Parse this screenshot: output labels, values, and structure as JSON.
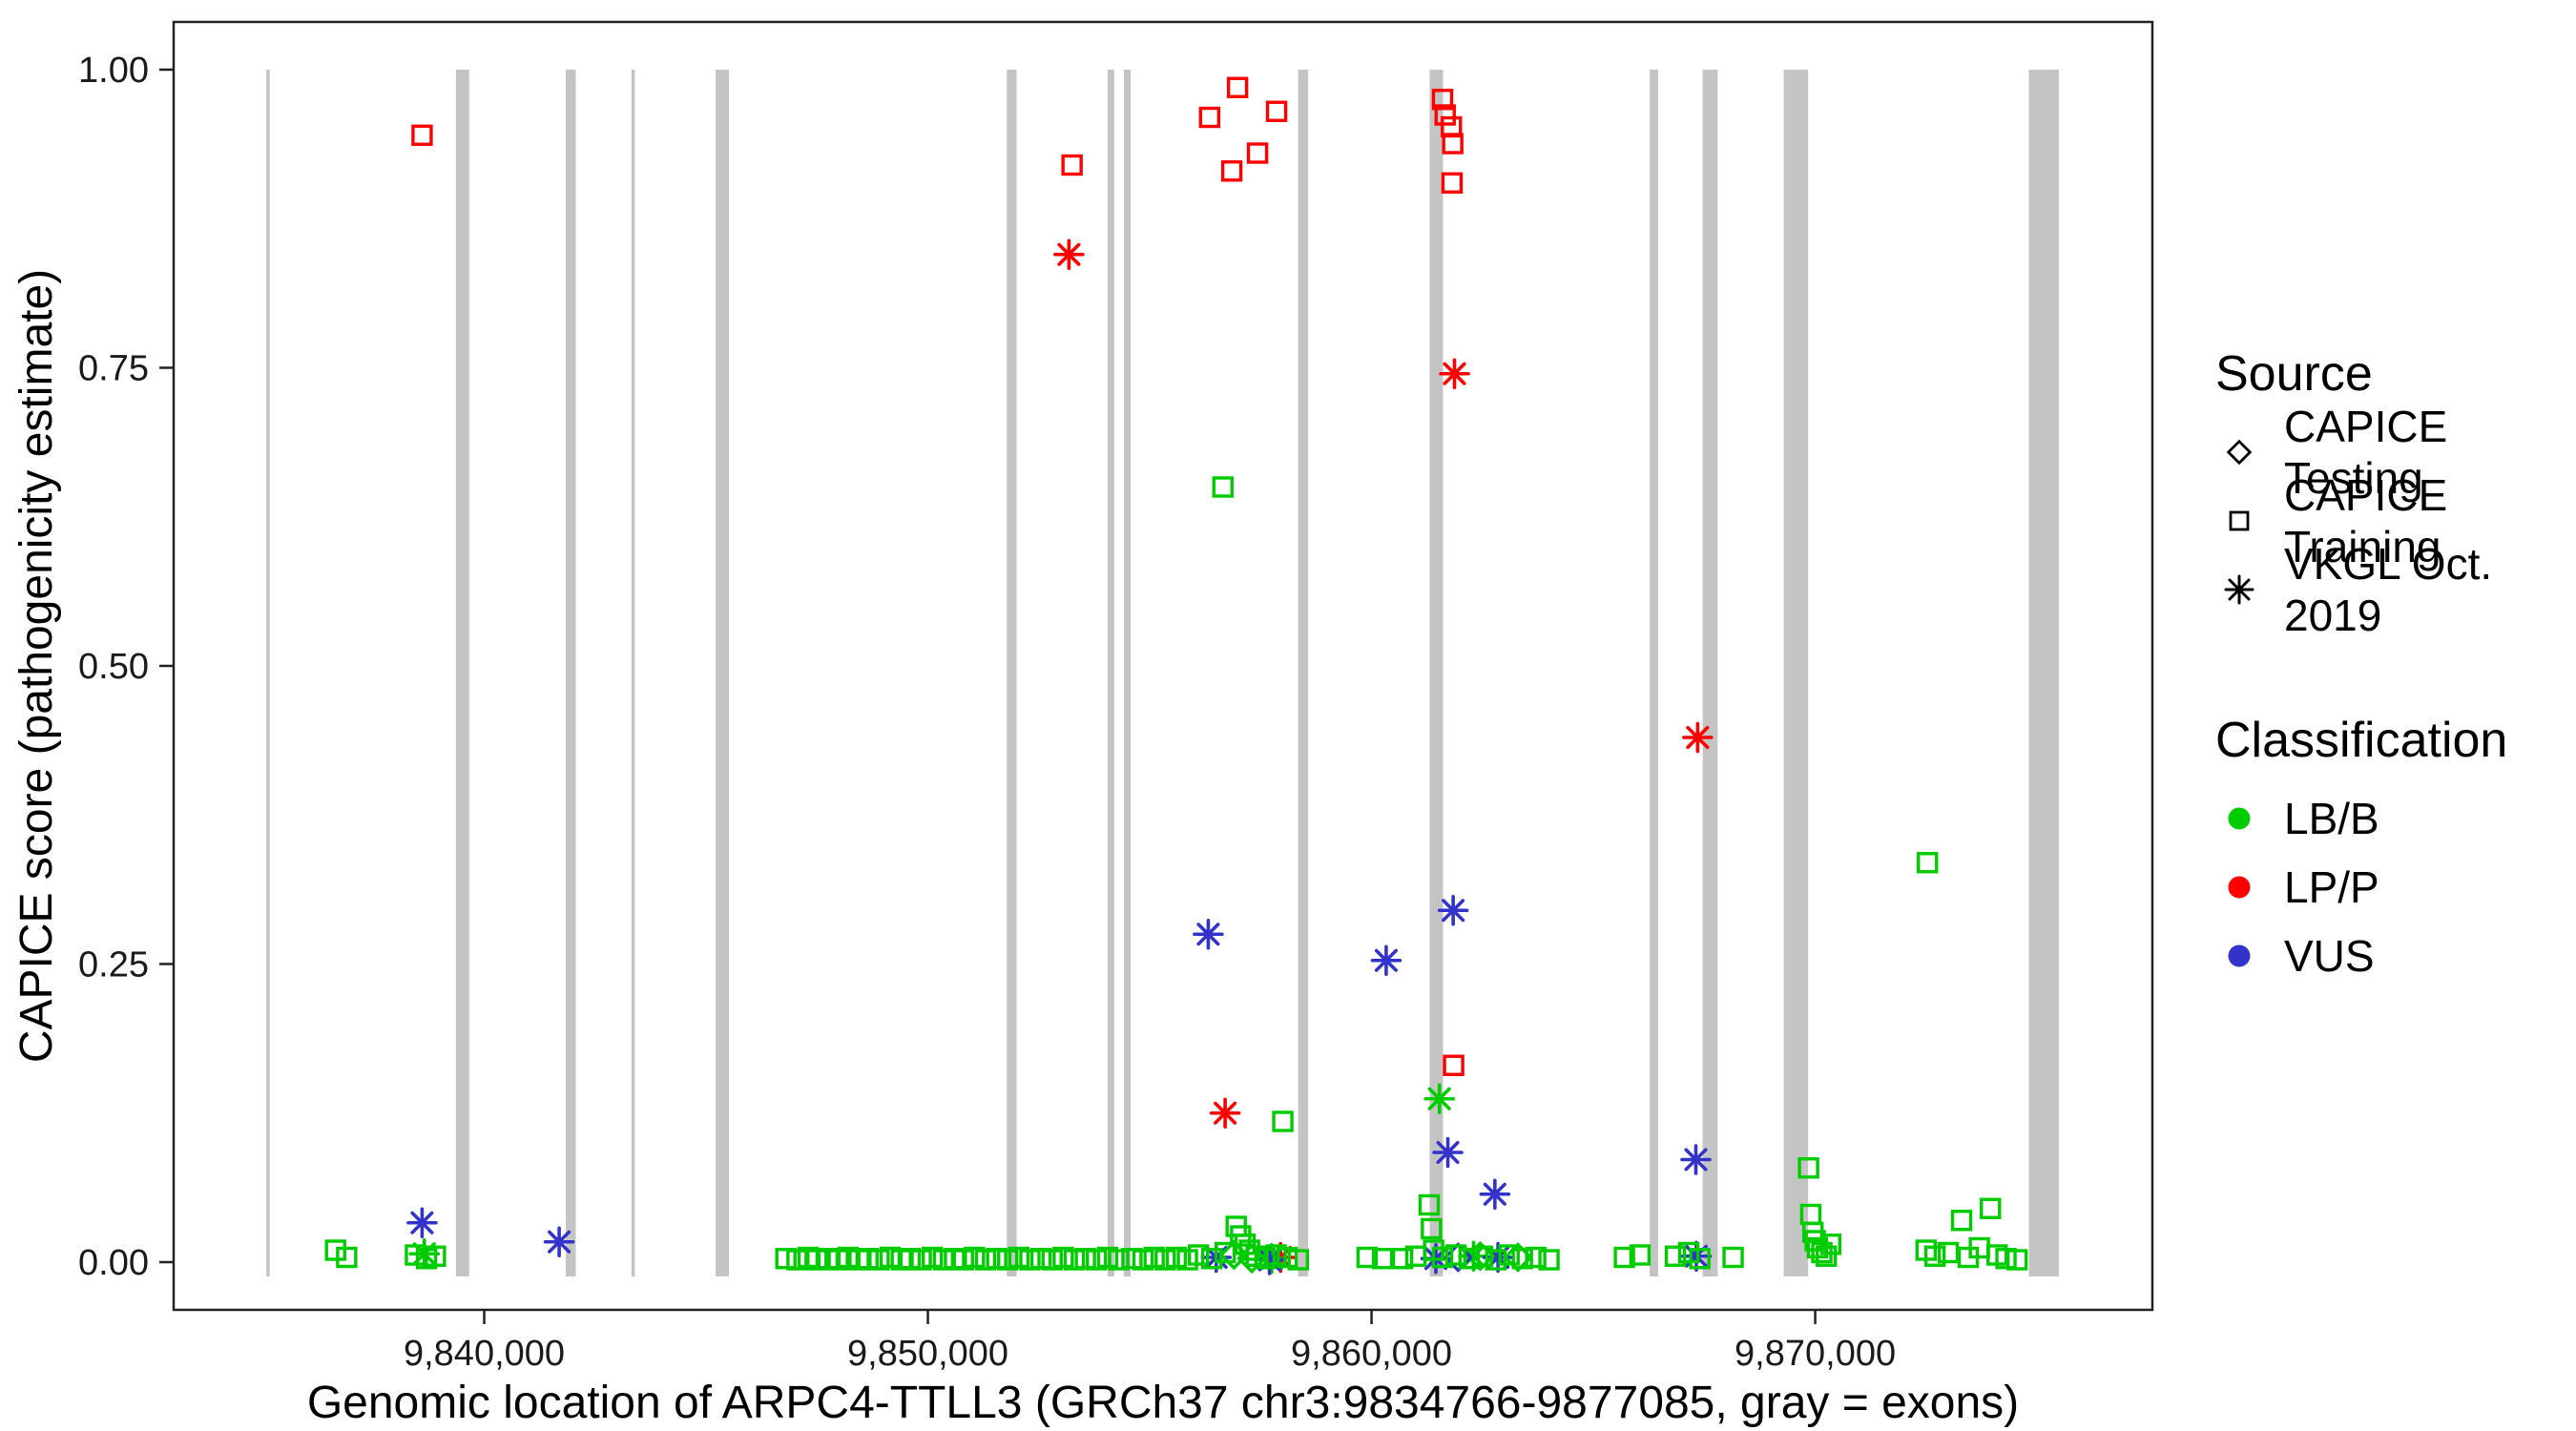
{
  "legend": {
    "source": {
      "title": "Source",
      "items": [
        {
          "label": "CAPICE Testing",
          "icon": "diamond-icon"
        },
        {
          "label": "CAPICE Training",
          "icon": "square-icon"
        },
        {
          "label": "VKGL Oct. 2019",
          "icon": "asterisk-icon"
        }
      ]
    },
    "classification": {
      "title": "Classification",
      "items": [
        {
          "label": "LB/B",
          "color": "#00CC00"
        },
        {
          "label": "LP/P",
          "color": "#FF0000"
        },
        {
          "label": "VUS",
          "color": "#3333CC"
        }
      ]
    }
  },
  "chart_data": {
    "type": "scatter",
    "title": "",
    "xlabel": "Genomic location of ARPC4-TTLL3 (GRCh37 chr3:9834766-9877085, gray = exons)",
    "ylabel": "CAPICE score (pathogenicity estimate)",
    "xlim": [
      9833000,
      9877600
    ],
    "ylim": [
      -0.04,
      1.04
    ],
    "xticks": [
      9840000,
      9850000,
      9860000,
      9870000
    ],
    "xtick_labels": [
      "9,840,000",
      "9,850,000",
      "9,860,000",
      "9,870,000"
    ],
    "yticks": [
      0,
      0.25,
      0.5,
      0.75,
      1
    ],
    "ytick_labels": [
      "0.00",
      "0.25",
      "0.50",
      "0.75",
      "1.00"
    ],
    "grid": false,
    "legend_position": "right",
    "exon_color": "#C4C4C4",
    "exon_y_range": [
      -0.012,
      1.0
    ],
    "exons": [
      [
        9835090,
        9835165
      ],
      [
        9839362,
        9839662
      ],
      [
        9841838,
        9842063
      ],
      [
        9843320,
        9843395
      ],
      [
        9845215,
        9845515
      ],
      [
        9851780,
        9852000
      ],
      [
        9854050,
        9854200
      ],
      [
        9854420,
        9854570
      ],
      [
        9858346,
        9858571
      ],
      [
        9861311,
        9861611
      ],
      [
        9866270,
        9866460
      ],
      [
        9867464,
        9867802
      ],
      [
        9869290,
        9869840
      ],
      [
        9874816,
        9875491
      ]
    ],
    "classification_colors": {
      "LB/B": "#00CC00",
      "LP/P": "#FF0000",
      "VUS": "#3333CC"
    },
    "source_shapes": {
      "CAPICE Testing": "diamond",
      "CAPICE Training": "square",
      "VKGL Oct. 2019": "asterisk"
    },
    "points": [
      {
        "x": 9838600,
        "y": 0.945,
        "source": "CAPICE Training",
        "class": "LP/P"
      },
      {
        "x": 9853250,
        "y": 0.92,
        "source": "CAPICE Training",
        "class": "LP/P"
      },
      {
        "x": 9856350,
        "y": 0.96,
        "source": "CAPICE Training",
        "class": "LP/P"
      },
      {
        "x": 9856850,
        "y": 0.915,
        "source": "CAPICE Training",
        "class": "LP/P"
      },
      {
        "x": 9856980,
        "y": 0.985,
        "source": "CAPICE Training",
        "class": "LP/P"
      },
      {
        "x": 9857430,
        "y": 0.93,
        "source": "CAPICE Training",
        "class": "LP/P"
      },
      {
        "x": 9857860,
        "y": 0.965,
        "source": "CAPICE Training",
        "class": "LP/P"
      },
      {
        "x": 9861600,
        "y": 0.975,
        "source": "CAPICE Training",
        "class": "LP/P"
      },
      {
        "x": 9861660,
        "y": 0.962,
        "source": "CAPICE Training",
        "class": "LP/P"
      },
      {
        "x": 9861800,
        "y": 0.952,
        "source": "CAPICE Training",
        "class": "LP/P"
      },
      {
        "x": 9861830,
        "y": 0.938,
        "source": "CAPICE Training",
        "class": "LP/P"
      },
      {
        "x": 9861815,
        "y": 0.905,
        "source": "CAPICE Training",
        "class": "LP/P"
      },
      {
        "x": 9861850,
        "y": 0.165,
        "source": "CAPICE Training",
        "class": "LP/P"
      },
      {
        "x": 9853180,
        "y": 0.845,
        "source": "VKGL Oct. 2019",
        "class": "LP/P"
      },
      {
        "x": 9861870,
        "y": 0.745,
        "source": "VKGL Oct. 2019",
        "class": "LP/P"
      },
      {
        "x": 9867350,
        "y": 0.44,
        "source": "VKGL Oct. 2019",
        "class": "LP/P"
      },
      {
        "x": 9856700,
        "y": 0.125,
        "source": "VKGL Oct. 2019",
        "class": "LP/P"
      },
      {
        "x": 9857950,
        "y": 0.004,
        "source": "VKGL Oct. 2019",
        "class": "LP/P"
      },
      {
        "x": 9856650,
        "y": 0.65,
        "source": "CAPICE Training",
        "class": "LB/B"
      },
      {
        "x": 9858000,
        "y": 0.118,
        "source": "CAPICE Training",
        "class": "LB/B"
      },
      {
        "x": 9872530,
        "y": 0.335,
        "source": "CAPICE Training",
        "class": "LB/B"
      },
      {
        "x": 9838650,
        "y": 0.007,
        "source": "VKGL Oct. 2019",
        "class": "LB/B"
      },
      {
        "x": 9861530,
        "y": 0.137,
        "source": "VKGL Oct. 2019",
        "class": "LB/B"
      },
      {
        "x": 9857750,
        "y": 0.003,
        "source": "VKGL Oct. 2019",
        "class": "LB/B"
      },
      {
        "x": 9862300,
        "y": 0.005,
        "source": "VKGL Oct. 2019",
        "class": "LB/B"
      },
      {
        "x": 9838600,
        "y": 0.033,
        "source": "VKGL Oct. 2019",
        "class": "VUS"
      },
      {
        "x": 9841690,
        "y": 0.017,
        "source": "VKGL Oct. 2019",
        "class": "VUS"
      },
      {
        "x": 9856320,
        "y": 0.275,
        "source": "VKGL Oct. 2019",
        "class": "VUS"
      },
      {
        "x": 9860330,
        "y": 0.253,
        "source": "VKGL Oct. 2019",
        "class": "VUS"
      },
      {
        "x": 9861840,
        "y": 0.295,
        "source": "VKGL Oct. 2019",
        "class": "VUS"
      },
      {
        "x": 9861720,
        "y": 0.092,
        "source": "VKGL Oct. 2019",
        "class": "VUS"
      },
      {
        "x": 9862780,
        "y": 0.057,
        "source": "VKGL Oct. 2019",
        "class": "VUS"
      },
      {
        "x": 9867310,
        "y": 0.086,
        "source": "VKGL Oct. 2019",
        "class": "VUS"
      },
      {
        "x": 9856500,
        "y": 0.004,
        "source": "VKGL Oct. 2019",
        "class": "VUS"
      },
      {
        "x": 9857700,
        "y": 0.002,
        "source": "VKGL Oct. 2019",
        "class": "VUS"
      },
      {
        "x": 9861450,
        "y": 0.003,
        "source": "VKGL Oct. 2019",
        "class": "VUS"
      },
      {
        "x": 9862850,
        "y": 0.004,
        "source": "VKGL Oct. 2019",
        "class": "VUS"
      },
      {
        "x": 9867320,
        "y": 0.005,
        "source": "VKGL Oct. 2019",
        "class": "VUS"
      },
      {
        "x": 9856900,
        "y": 0.006,
        "source": "CAPICE Testing",
        "class": "LB/B"
      },
      {
        "x": 9857300,
        "y": 0.003,
        "source": "CAPICE Testing",
        "class": "LB/B"
      },
      {
        "x": 9862450,
        "y": 0.005,
        "source": "CAPICE Testing",
        "class": "LB/B"
      },
      {
        "x": 9863300,
        "y": 0.004,
        "source": "CAPICE Testing",
        "class": "LB/B"
      },
      {
        "x": 9861950,
        "y": 0.004,
        "source": "CAPICE Testing",
        "class": "VUS"
      },
      {
        "x": 9836650,
        "y": 0.01,
        "source": "CAPICE Training",
        "class": "LB/B"
      },
      {
        "x": 9836900,
        "y": 0.004,
        "source": "CAPICE Training",
        "class": "LB/B"
      },
      {
        "x": 9838450,
        "y": 0.006,
        "source": "CAPICE Training",
        "class": "LB/B"
      },
      {
        "x": 9838700,
        "y": 0.003,
        "source": "CAPICE Training",
        "class": "LB/B"
      },
      {
        "x": 9838900,
        "y": 0.005,
        "source": "CAPICE Training",
        "class": "LB/B"
      },
      {
        "x": 9846800,
        "y": 0.003,
        "source": "CAPICE Training",
        "class": "LB/B"
      },
      {
        "x": 9847050,
        "y": 0.002,
        "source": "CAPICE Training",
        "class": "LB/B"
      },
      {
        "x": 9847300,
        "y": 0.004,
        "source": "CAPICE Training",
        "class": "LB/B"
      },
      {
        "x": 9847500,
        "y": 0.002,
        "source": "CAPICE Training",
        "class": "LB/B"
      },
      {
        "x": 9847750,
        "y": 0.003,
        "source": "CAPICE Training",
        "class": "LB/B"
      },
      {
        "x": 9847980,
        "y": 0.002,
        "source": "CAPICE Training",
        "class": "LB/B"
      },
      {
        "x": 9848200,
        "y": 0.004,
        "source": "CAPICE Training",
        "class": "LB/B"
      },
      {
        "x": 9848450,
        "y": 0.002,
        "source": "CAPICE Training",
        "class": "LB/B"
      },
      {
        "x": 9848650,
        "y": 0.003,
        "source": "CAPICE Training",
        "class": "LB/B"
      },
      {
        "x": 9848900,
        "y": 0.002,
        "source": "CAPICE Training",
        "class": "LB/B"
      },
      {
        "x": 9849150,
        "y": 0.004,
        "source": "CAPICE Training",
        "class": "LB/B"
      },
      {
        "x": 9849400,
        "y": 0.002,
        "source": "CAPICE Training",
        "class": "LB/B"
      },
      {
        "x": 9849600,
        "y": 0.003,
        "source": "CAPICE Training",
        "class": "LB/B"
      },
      {
        "x": 9849850,
        "y": 0.002,
        "source": "CAPICE Training",
        "class": "LB/B"
      },
      {
        "x": 9850100,
        "y": 0.004,
        "source": "CAPICE Training",
        "class": "LB/B"
      },
      {
        "x": 9850350,
        "y": 0.002,
        "source": "CAPICE Training",
        "class": "LB/B"
      },
      {
        "x": 9850600,
        "y": 0.003,
        "source": "CAPICE Training",
        "class": "LB/B"
      },
      {
        "x": 9850800,
        "y": 0.002,
        "source": "CAPICE Training",
        "class": "LB/B"
      },
      {
        "x": 9851050,
        "y": 0.004,
        "source": "CAPICE Training",
        "class": "LB/B"
      },
      {
        "x": 9851300,
        "y": 0.002,
        "source": "CAPICE Training",
        "class": "LB/B"
      },
      {
        "x": 9851550,
        "y": 0.003,
        "source": "CAPICE Training",
        "class": "LB/B"
      },
      {
        "x": 9851800,
        "y": 0.002,
        "source": "CAPICE Training",
        "class": "LB/B"
      },
      {
        "x": 9852050,
        "y": 0.004,
        "source": "CAPICE Training",
        "class": "LB/B"
      },
      {
        "x": 9852300,
        "y": 0.002,
        "source": "CAPICE Training",
        "class": "LB/B"
      },
      {
        "x": 9852550,
        "y": 0.003,
        "source": "CAPICE Training",
        "class": "LB/B"
      },
      {
        "x": 9852800,
        "y": 0.002,
        "source": "CAPICE Training",
        "class": "LB/B"
      },
      {
        "x": 9853050,
        "y": 0.004,
        "source": "CAPICE Training",
        "class": "LB/B"
      },
      {
        "x": 9853300,
        "y": 0.002,
        "source": "CAPICE Training",
        "class": "LB/B"
      },
      {
        "x": 9853550,
        "y": 0.003,
        "source": "CAPICE Training",
        "class": "LB/B"
      },
      {
        "x": 9853800,
        "y": 0.002,
        "source": "CAPICE Training",
        "class": "LB/B"
      },
      {
        "x": 9854050,
        "y": 0.004,
        "source": "CAPICE Training",
        "class": "LB/B"
      },
      {
        "x": 9854300,
        "y": 0.002,
        "source": "CAPICE Training",
        "class": "LB/B"
      },
      {
        "x": 9854600,
        "y": 0.003,
        "source": "CAPICE Training",
        "class": "LB/B"
      },
      {
        "x": 9854850,
        "y": 0.002,
        "source": "CAPICE Training",
        "class": "LB/B"
      },
      {
        "x": 9855100,
        "y": 0.004,
        "source": "CAPICE Training",
        "class": "LB/B"
      },
      {
        "x": 9855350,
        "y": 0.002,
        "source": "CAPICE Training",
        "class": "LB/B"
      },
      {
        "x": 9855600,
        "y": 0.004,
        "source": "CAPICE Training",
        "class": "LB/B"
      },
      {
        "x": 9855850,
        "y": 0.002,
        "source": "CAPICE Training",
        "class": "LB/B"
      },
      {
        "x": 9856100,
        "y": 0.006,
        "source": "CAPICE Training",
        "class": "LB/B"
      },
      {
        "x": 9856400,
        "y": 0.003,
        "source": "CAPICE Training",
        "class": "LB/B"
      },
      {
        "x": 9856700,
        "y": 0.008,
        "source": "CAPICE Training",
        "class": "LB/B"
      },
      {
        "x": 9856950,
        "y": 0.03,
        "source": "CAPICE Training",
        "class": "LB/B"
      },
      {
        "x": 9857050,
        "y": 0.022,
        "source": "CAPICE Training",
        "class": "LB/B"
      },
      {
        "x": 9857150,
        "y": 0.015,
        "source": "CAPICE Training",
        "class": "LB/B"
      },
      {
        "x": 9857250,
        "y": 0.01,
        "source": "CAPICE Training",
        "class": "LB/B"
      },
      {
        "x": 9857400,
        "y": 0.005,
        "source": "CAPICE Training",
        "class": "LB/B"
      },
      {
        "x": 9857600,
        "y": 0.003,
        "source": "CAPICE Training",
        "class": "LB/B"
      },
      {
        "x": 9857850,
        "y": 0.006,
        "source": "CAPICE Training",
        "class": "LB/B"
      },
      {
        "x": 9858100,
        "y": 0.004,
        "source": "CAPICE Training",
        "class": "LB/B"
      },
      {
        "x": 9858350,
        "y": 0.002,
        "source": "CAPICE Training",
        "class": "LB/B"
      },
      {
        "x": 9859900,
        "y": 0.004,
        "source": "CAPICE Training",
        "class": "LB/B"
      },
      {
        "x": 9860250,
        "y": 0.003,
        "source": "CAPICE Training",
        "class": "LB/B"
      },
      {
        "x": 9860700,
        "y": 0.003,
        "source": "CAPICE Training",
        "class": "LB/B"
      },
      {
        "x": 9861000,
        "y": 0.005,
        "source": "CAPICE Training",
        "class": "LB/B"
      },
      {
        "x": 9861300,
        "y": 0.048,
        "source": "CAPICE Training",
        "class": "LB/B"
      },
      {
        "x": 9861350,
        "y": 0.028,
        "source": "CAPICE Training",
        "class": "LB/B"
      },
      {
        "x": 9861400,
        "y": 0.01,
        "source": "CAPICE Training",
        "class": "LB/B"
      },
      {
        "x": 9861600,
        "y": 0.004,
        "source": "CAPICE Training",
        "class": "LB/B"
      },
      {
        "x": 9861900,
        "y": 0.006,
        "source": "CAPICE Training",
        "class": "LB/B"
      },
      {
        "x": 9862200,
        "y": 0.003,
        "source": "CAPICE Training",
        "class": "LB/B"
      },
      {
        "x": 9862500,
        "y": 0.005,
        "source": "CAPICE Training",
        "class": "LB/B"
      },
      {
        "x": 9862800,
        "y": 0.002,
        "source": "CAPICE Training",
        "class": "LB/B"
      },
      {
        "x": 9863100,
        "y": 0.006,
        "source": "CAPICE Training",
        "class": "LB/B"
      },
      {
        "x": 9863400,
        "y": 0.003,
        "source": "CAPICE Training",
        "class": "LB/B"
      },
      {
        "x": 9863700,
        "y": 0.004,
        "source": "CAPICE Training",
        "class": "LB/B"
      },
      {
        "x": 9864000,
        "y": 0.002,
        "source": "CAPICE Training",
        "class": "LB/B"
      },
      {
        "x": 9865700,
        "y": 0.004,
        "source": "CAPICE Training",
        "class": "LB/B"
      },
      {
        "x": 9866050,
        "y": 0.006,
        "source": "CAPICE Training",
        "class": "LB/B"
      },
      {
        "x": 9866850,
        "y": 0.005,
        "source": "CAPICE Training",
        "class": "LB/B"
      },
      {
        "x": 9867150,
        "y": 0.008,
        "source": "CAPICE Training",
        "class": "LB/B"
      },
      {
        "x": 9867400,
        "y": 0.003,
        "source": "CAPICE Training",
        "class": "LB/B"
      },
      {
        "x": 9868150,
        "y": 0.004,
        "source": "CAPICE Training",
        "class": "LB/B"
      },
      {
        "x": 9869850,
        "y": 0.079,
        "source": "CAPICE Training",
        "class": "LB/B"
      },
      {
        "x": 9869900,
        "y": 0.04,
        "source": "CAPICE Training",
        "class": "LB/B"
      },
      {
        "x": 9869950,
        "y": 0.025,
        "source": "CAPICE Training",
        "class": "LB/B"
      },
      {
        "x": 9870000,
        "y": 0.018,
        "source": "CAPICE Training",
        "class": "LB/B"
      },
      {
        "x": 9870050,
        "y": 0.012,
        "source": "CAPICE Training",
        "class": "LB/B"
      },
      {
        "x": 9870150,
        "y": 0.008,
        "source": "CAPICE Training",
        "class": "LB/B"
      },
      {
        "x": 9870250,
        "y": 0.005,
        "source": "CAPICE Training",
        "class": "LB/B"
      },
      {
        "x": 9870350,
        "y": 0.015,
        "source": "CAPICE Training",
        "class": "LB/B"
      },
      {
        "x": 9872500,
        "y": 0.01,
        "source": "CAPICE Training",
        "class": "LB/B"
      },
      {
        "x": 9872700,
        "y": 0.005,
        "source": "CAPICE Training",
        "class": "LB/B"
      },
      {
        "x": 9873000,
        "y": 0.008,
        "source": "CAPICE Training",
        "class": "LB/B"
      },
      {
        "x": 9873300,
        "y": 0.035,
        "source": "CAPICE Training",
        "class": "LB/B"
      },
      {
        "x": 9873450,
        "y": 0.004,
        "source": "CAPICE Training",
        "class": "LB/B"
      },
      {
        "x": 9873700,
        "y": 0.012,
        "source": "CAPICE Training",
        "class": "LB/B"
      },
      {
        "x": 9873950,
        "y": 0.045,
        "source": "CAPICE Training",
        "class": "LB/B"
      },
      {
        "x": 9874100,
        "y": 0.006,
        "source": "CAPICE Training",
        "class": "LB/B"
      },
      {
        "x": 9874300,
        "y": 0.003,
        "source": "CAPICE Training",
        "class": "LB/B"
      },
      {
        "x": 9874550,
        "y": 0.002,
        "source": "CAPICE Training",
        "class": "LB/B"
      }
    ]
  }
}
